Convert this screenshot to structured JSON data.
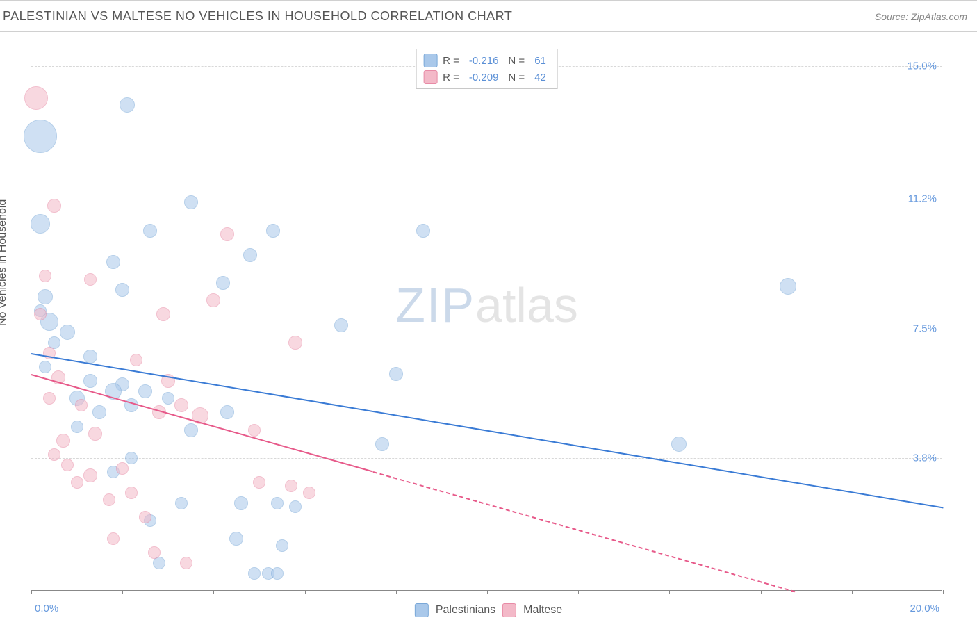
{
  "header": {
    "title": "PALESTINIAN VS MALTESE NO VEHICLES IN HOUSEHOLD CORRELATION CHART",
    "source_label": "Source: ZipAtlas.com"
  },
  "chart": {
    "type": "scatter",
    "ylabel": "No Vehicles in Household",
    "watermark": {
      "zip": "ZIP",
      "atlas": "atlas",
      "zip_color": "#cbd9ea",
      "atlas_color": "#e4e4e4"
    },
    "background_color": "#ffffff",
    "axis_color": "#888888",
    "grid_color": "#d8d8d8",
    "xlim": [
      0.0,
      20.0
    ],
    "ylim": [
      0.0,
      15.7
    ],
    "xticks_percent": [
      0,
      10,
      20,
      30,
      40,
      50,
      60,
      70,
      80,
      90,
      100
    ],
    "yticks": [
      {
        "value": 15.0,
        "label": "15.0%"
      },
      {
        "value": 11.2,
        "label": "11.2%"
      },
      {
        "value": 7.5,
        "label": "7.5%"
      },
      {
        "value": 3.8,
        "label": "3.8%"
      }
    ],
    "xaxis_min_label": "0.0%",
    "xaxis_max_label": "20.0%",
    "tick_label_color": "#6699dd",
    "axis_label_color": "#555555",
    "axis_fontsize": 15,
    "series": [
      {
        "name": "Palestinians",
        "fill": "#a9c8ea",
        "stroke": "#7aa8d8",
        "fill_opacity": 0.55,
        "trend_color": "#3a7bd5",
        "trend_width": 2,
        "R": "-0.216",
        "N": "61",
        "trend": {
          "x1": 0.0,
          "y1": 6.8,
          "x2": 20.0,
          "y2": 2.4,
          "dash_after_x": 20.0
        },
        "points": [
          {
            "x": 0.2,
            "y": 13.0,
            "r": 24
          },
          {
            "x": 2.1,
            "y": 13.9,
            "r": 11
          },
          {
            "x": 0.2,
            "y": 10.5,
            "r": 14
          },
          {
            "x": 3.5,
            "y": 11.1,
            "r": 10
          },
          {
            "x": 2.6,
            "y": 10.3,
            "r": 10
          },
          {
            "x": 5.3,
            "y": 10.3,
            "r": 10
          },
          {
            "x": 8.6,
            "y": 10.3,
            "r": 10
          },
          {
            "x": 4.8,
            "y": 9.6,
            "r": 10
          },
          {
            "x": 1.8,
            "y": 9.4,
            "r": 10
          },
          {
            "x": 4.2,
            "y": 8.8,
            "r": 10
          },
          {
            "x": 16.6,
            "y": 8.7,
            "r": 12
          },
          {
            "x": 2.0,
            "y": 8.6,
            "r": 10
          },
          {
            "x": 0.3,
            "y": 8.4,
            "r": 11
          },
          {
            "x": 0.2,
            "y": 8.0,
            "r": 9
          },
          {
            "x": 0.4,
            "y": 7.7,
            "r": 13
          },
          {
            "x": 6.8,
            "y": 7.6,
            "r": 10
          },
          {
            "x": 0.8,
            "y": 7.4,
            "r": 11
          },
          {
            "x": 0.5,
            "y": 7.1,
            "r": 9
          },
          {
            "x": 1.3,
            "y": 6.7,
            "r": 10
          },
          {
            "x": 0.3,
            "y": 6.4,
            "r": 9
          },
          {
            "x": 8.0,
            "y": 6.2,
            "r": 10
          },
          {
            "x": 1.3,
            "y": 6.0,
            "r": 10
          },
          {
            "x": 2.0,
            "y": 5.9,
            "r": 10
          },
          {
            "x": 1.8,
            "y": 5.7,
            "r": 12
          },
          {
            "x": 2.5,
            "y": 5.7,
            "r": 10
          },
          {
            "x": 1.0,
            "y": 5.5,
            "r": 11
          },
          {
            "x": 3.0,
            "y": 5.5,
            "r": 9
          },
          {
            "x": 2.2,
            "y": 5.3,
            "r": 10
          },
          {
            "x": 1.5,
            "y": 5.1,
            "r": 10
          },
          {
            "x": 4.3,
            "y": 5.1,
            "r": 10
          },
          {
            "x": 1.0,
            "y": 4.7,
            "r": 9
          },
          {
            "x": 3.5,
            "y": 4.6,
            "r": 10
          },
          {
            "x": 7.7,
            "y": 4.2,
            "r": 10
          },
          {
            "x": 14.2,
            "y": 4.2,
            "r": 11
          },
          {
            "x": 2.2,
            "y": 3.8,
            "r": 9
          },
          {
            "x": 1.8,
            "y": 3.4,
            "r": 9
          },
          {
            "x": 3.3,
            "y": 2.5,
            "r": 9
          },
          {
            "x": 4.6,
            "y": 2.5,
            "r": 10
          },
          {
            "x": 5.4,
            "y": 2.5,
            "r": 9
          },
          {
            "x": 5.8,
            "y": 2.4,
            "r": 9
          },
          {
            "x": 2.6,
            "y": 2.0,
            "r": 9
          },
          {
            "x": 4.5,
            "y": 1.5,
            "r": 10
          },
          {
            "x": 5.5,
            "y": 1.3,
            "r": 9
          },
          {
            "x": 2.8,
            "y": 0.8,
            "r": 9
          },
          {
            "x": 4.9,
            "y": 0.5,
            "r": 9
          },
          {
            "x": 5.2,
            "y": 0.5,
            "r": 9
          },
          {
            "x": 5.4,
            "y": 0.5,
            "r": 9
          }
        ]
      },
      {
        "name": "Maltese",
        "fill": "#f3b9c8",
        "stroke": "#e88ba6",
        "fill_opacity": 0.55,
        "trend_color": "#e75a8a",
        "trend_width": 2,
        "R": "-0.209",
        "N": "42",
        "trend": {
          "x1": 0.0,
          "y1": 6.2,
          "x2": 20.0,
          "y2": -1.2,
          "dash_after_x": 7.5
        },
        "points": [
          {
            "x": 0.1,
            "y": 14.1,
            "r": 17
          },
          {
            "x": 0.5,
            "y": 11.0,
            "r": 10
          },
          {
            "x": 4.3,
            "y": 10.2,
            "r": 10
          },
          {
            "x": 0.3,
            "y": 9.0,
            "r": 9
          },
          {
            "x": 1.3,
            "y": 8.9,
            "r": 9
          },
          {
            "x": 4.0,
            "y": 8.3,
            "r": 10
          },
          {
            "x": 2.9,
            "y": 7.9,
            "r": 10
          },
          {
            "x": 0.2,
            "y": 7.9,
            "r": 9
          },
          {
            "x": 5.8,
            "y": 7.1,
            "r": 10
          },
          {
            "x": 0.4,
            "y": 6.8,
            "r": 9
          },
          {
            "x": 2.3,
            "y": 6.6,
            "r": 9
          },
          {
            "x": 0.6,
            "y": 6.1,
            "r": 10
          },
          {
            "x": 3.0,
            "y": 6.0,
            "r": 10
          },
          {
            "x": 0.4,
            "y": 5.5,
            "r": 9
          },
          {
            "x": 1.1,
            "y": 5.3,
            "r": 9
          },
          {
            "x": 2.8,
            "y": 5.1,
            "r": 10
          },
          {
            "x": 3.3,
            "y": 5.3,
            "r": 10
          },
          {
            "x": 3.7,
            "y": 5.0,
            "r": 12
          },
          {
            "x": 1.4,
            "y": 4.5,
            "r": 10
          },
          {
            "x": 0.7,
            "y": 4.3,
            "r": 10
          },
          {
            "x": 4.9,
            "y": 4.6,
            "r": 9
          },
          {
            "x": 0.5,
            "y": 3.9,
            "r": 9
          },
          {
            "x": 0.8,
            "y": 3.6,
            "r": 9
          },
          {
            "x": 2.0,
            "y": 3.5,
            "r": 9
          },
          {
            "x": 1.3,
            "y": 3.3,
            "r": 10
          },
          {
            "x": 1.0,
            "y": 3.1,
            "r": 9
          },
          {
            "x": 5.0,
            "y": 3.1,
            "r": 9
          },
          {
            "x": 5.7,
            "y": 3.0,
            "r": 9
          },
          {
            "x": 2.2,
            "y": 2.8,
            "r": 9
          },
          {
            "x": 1.7,
            "y": 2.6,
            "r": 9
          },
          {
            "x": 2.5,
            "y": 2.1,
            "r": 9
          },
          {
            "x": 1.8,
            "y": 1.5,
            "r": 9
          },
          {
            "x": 2.7,
            "y": 1.1,
            "r": 9
          },
          {
            "x": 3.4,
            "y": 0.8,
            "r": 9
          },
          {
            "x": 6.1,
            "y": 2.8,
            "r": 9
          }
        ]
      }
    ],
    "legend_top": {
      "R_prefix": "R =",
      "N_prefix": "N ="
    },
    "legend_bottom": [
      {
        "label": "Palestinians",
        "fill": "#a9c8ea",
        "stroke": "#7aa8d8"
      },
      {
        "label": "Maltese",
        "fill": "#f3b9c8",
        "stroke": "#e88ba6"
      }
    ]
  }
}
